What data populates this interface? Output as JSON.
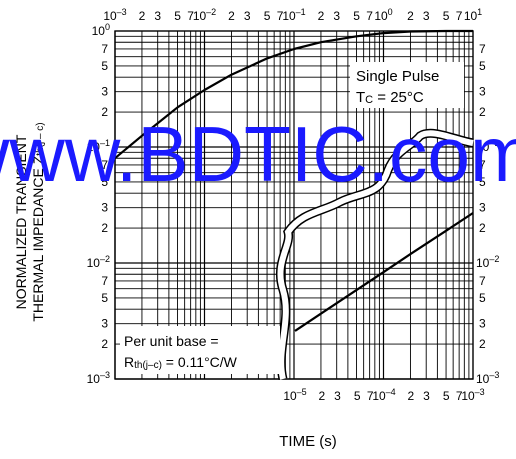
{
  "chart_data": {
    "type": "line",
    "title": "",
    "xlabel": "TIME (s)",
    "ylabel_line1": "NORMALIZED TRANSIENT",
    "ylabel_line2": "THERMAL IMPEDANCE Z",
    "ylabel_sub": "th(j – c)",
    "top_x_axis": {
      "scale": "log",
      "xlim": [
        0.001,
        10
      ],
      "decade_labels": [
        {
          "base": "10",
          "exp": "–3"
        },
        {
          "base": "10",
          "exp": "–2"
        },
        {
          "base": "10",
          "exp": "–1"
        },
        {
          "base": "10",
          "exp": "0"
        },
        {
          "base": "10",
          "exp": "1"
        }
      ],
      "minor_labels": [
        "2",
        "3",
        "5",
        "7"
      ]
    },
    "bottom_x_axis": {
      "scale": "log",
      "xlim": [
        1e-05,
        0.001
      ],
      "decade_labels": [
        {
          "base": "10",
          "exp": "–5"
        },
        {
          "base": "10",
          "exp": "–4"
        },
        {
          "base": "10",
          "exp": "–3"
        }
      ],
      "minor_labels": [
        "2",
        "3",
        "5",
        "7"
      ]
    },
    "y_axis": {
      "scale": "log",
      "ylim": [
        0.001,
        1
      ],
      "decade_labels": [
        {
          "base": "10",
          "exp": "0"
        },
        {
          "base": "10",
          "exp": "–1"
        },
        {
          "base": "10",
          "exp": "–2"
        },
        {
          "base": "10",
          "exp": "–3"
        }
      ],
      "minor_labels": [
        "2",
        "3",
        "5",
        "7"
      ]
    },
    "grid": true,
    "series": [
      {
        "axis": "top",
        "x": [
          0.001,
          0.002,
          0.003,
          0.005,
          0.01,
          0.02,
          0.05,
          0.1,
          0.2,
          0.5,
          1,
          2,
          5,
          10
        ],
        "y": [
          0.08,
          0.125,
          0.16,
          0.22,
          0.31,
          0.42,
          0.58,
          0.7,
          0.8,
          0.9,
          0.96,
          0.99,
          1.0,
          1.0
        ]
      },
      {
        "axis": "bottom",
        "x": [
          1e-05,
          2e-05,
          5e-05,
          0.0001,
          0.0002,
          0.0005,
          0.001
        ],
        "y": [
          0.0026,
          0.0037,
          0.0059,
          0.0084,
          0.012,
          0.019,
          0.027
        ]
      }
    ],
    "annotations": {
      "pulse": "Single Pulse",
      "tc_prefix": "T",
      "tc_sub": "C",
      "tc_value": " = 25°C",
      "base_line1": "Per unit base =",
      "base_prefix": "R",
      "base_sub": "th(j–c)",
      "base_value": " = 0.11°C/W"
    },
    "watermark": "www.BDTIC.com"
  }
}
